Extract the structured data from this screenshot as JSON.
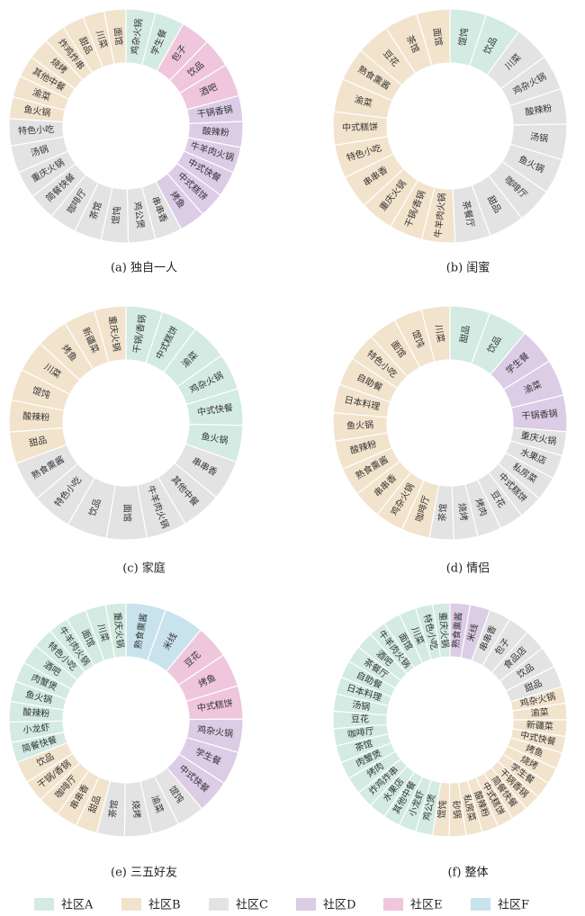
{
  "chart_data": [
    {
      "type": "donut",
      "title": "(a) 独自一人",
      "categories": [
        "鸡杂火锅",
        "学生餐",
        "包子",
        "饮品",
        "酒吧",
        "干锅香锅",
        "酸辣粉",
        "牛羊肉火锅",
        "中式快餐",
        "中式糕饼",
        "烤鱼",
        "串串香",
        "鸡公煲",
        "馄饨",
        "茶馆",
        "咖啡厅",
        "简餐快餐",
        "重庆火锅",
        "汤锅",
        "特色小吃",
        "鱼火锅",
        "渝菜",
        "其他中餐",
        "烧烤",
        "炸鸡炸串",
        "甜品",
        "川菜",
        "面馆"
      ],
      "values": [
        4,
        4,
        4,
        4,
        4.5,
        3.5,
        3.5,
        3.5,
        3.5,
        3.5,
        3.5,
        3.7,
        3.7,
        3.7,
        3.7,
        3.7,
        3.7,
        3.7,
        3.7,
        3.7,
        2.95,
        2.95,
        2.95,
        2.95,
        2.95,
        2.95,
        2.95,
        2.95
      ],
      "colors": [
        "#d3ebe2",
        "#d3ebe2",
        "#efc6dc",
        "#efc6dc",
        "#efc6dc",
        "#dccce6",
        "#dccce6",
        "#dccce6",
        "#dccce6",
        "#dccce6",
        "#dccce6",
        "#e3e3e3",
        "#e3e3e3",
        "#e3e3e3",
        "#e3e3e3",
        "#e3e3e3",
        "#e3e3e3",
        "#e3e3e3",
        "#e3e3e3",
        "#e3e3e3",
        "#f2e3cd",
        "#f2e3cd",
        "#f2e3cd",
        "#f2e3cd",
        "#f2e3cd",
        "#f2e3cd",
        "#f2e3cd",
        "#f2e3cd"
      ]
    },
    {
      "type": "donut",
      "title": "(b) 闺蜜",
      "categories": [
        "馄饨",
        "饮品",
        "川菜",
        "鸡杂火锅",
        "酸辣粉",
        "汤锅",
        "鱼火锅",
        "咖啡厅",
        "甜品",
        "茶餐厅",
        "牛羊肉火锅",
        "干锅/香锅",
        "重庆火锅",
        "串串香",
        "特色小吃",
        "中式糕饼",
        "渝菜",
        "熟食熏酱",
        "豆花",
        "茶馆",
        "面馆"
      ],
      "values": [
        5,
        5,
        4.9,
        4.9,
        4.9,
        4.9,
        4.9,
        4.9,
        4.9,
        4.9,
        4.6,
        4.6,
        4.6,
        4.6,
        4.6,
        4.6,
        4.6,
        4.6,
        4.6,
        4.6,
        4.6
      ],
      "colors": [
        "#d3ebe2",
        "#d3ebe2",
        "#e3e3e3",
        "#e3e3e3",
        "#e3e3e3",
        "#e3e3e3",
        "#e3e3e3",
        "#e3e3e3",
        "#e3e3e3",
        "#e3e3e3",
        "#f2e3cd",
        "#f2e3cd",
        "#f2e3cd",
        "#f2e3cd",
        "#f2e3cd",
        "#f2e3cd",
        "#f2e3cd",
        "#f2e3cd",
        "#f2e3cd",
        "#f2e3cd",
        "#f2e3cd"
      ]
    },
    {
      "type": "donut",
      "title": "(c) 家庭",
      "categories": [
        "干锅/香锅",
        "中式糕饼",
        "渝菜",
        "鸡杂火锅",
        "中式快餐",
        "鱼火锅",
        "串串香",
        "其他中餐",
        "牛羊肉火锅",
        "面馆",
        "饮品",
        "特色小吃",
        "熟食熏酱",
        "甜品",
        "酸辣粉",
        "馄饨",
        "川菜",
        "烤鱼",
        "新疆菜",
        "重庆火锅"
      ],
      "values": [
        5.1,
        5.1,
        5.1,
        5.1,
        5.1,
        5.1,
        5.6,
        5.6,
        5.6,
        5.6,
        5.6,
        5.6,
        5.6,
        4.4,
        4.4,
        4.4,
        4.4,
        4.4,
        4.4,
        4.4
      ],
      "colors": [
        "#d3ebe2",
        "#d3ebe2",
        "#d3ebe2",
        "#d3ebe2",
        "#d3ebe2",
        "#d3ebe2",
        "#e3e3e3",
        "#e3e3e3",
        "#e3e3e3",
        "#e3e3e3",
        "#e3e3e3",
        "#e3e3e3",
        "#e3e3e3",
        "#f2e3cd",
        "#f2e3cd",
        "#f2e3cd",
        "#f2e3cd",
        "#f2e3cd",
        "#f2e3cd",
        "#f2e3cd"
      ]
    },
    {
      "type": "donut",
      "title": "(d) 情侣",
      "categories": [
        "甜品",
        "饮品",
        "学生餐",
        "渝菜",
        "干锅香锅",
        "重庆火锅",
        "水果店",
        "私房菜",
        "中式糕饼",
        "豆花",
        "烤肉",
        "烧烤",
        "茶馆",
        "咖啡厅",
        "鸡杂火锅",
        "串串香",
        "熟食熏酱",
        "酸辣粉",
        "鱼火锅",
        "日本料理",
        "自助餐",
        "特色小吃",
        "面馆",
        "馄饨",
        "川菜"
      ],
      "values": [
        5.5,
        5.5,
        5,
        5,
        5,
        3.3,
        3.3,
        3.3,
        3.3,
        3.3,
        3.3,
        3.3,
        3.3,
        3.9,
        3.9,
        3.9,
        3.9,
        3.9,
        3.9,
        3.9,
        3.9,
        3.9,
        3.9,
        3.9,
        3.9
      ],
      "colors": [
        "#d3ebe2",
        "#d3ebe2",
        "#dccce6",
        "#dccce6",
        "#dccce6",
        "#e3e3e3",
        "#e3e3e3",
        "#e3e3e3",
        "#e3e3e3",
        "#e3e3e3",
        "#e3e3e3",
        "#e3e3e3",
        "#e3e3e3",
        "#f2e3cd",
        "#f2e3cd",
        "#f2e3cd",
        "#f2e3cd",
        "#f2e3cd",
        "#f2e3cd",
        "#f2e3cd",
        "#f2e3cd",
        "#f2e3cd",
        "#f2e3cd",
        "#f2e3cd",
        "#f2e3cd"
      ]
    },
    {
      "type": "donut",
      "title": "(e) 三五好友",
      "categories": [
        "熟食熏酱",
        "米线",
        "豆花",
        "烤鱼",
        "中式糕饼",
        "鸡杂火锅",
        "学生餐",
        "中式快餐",
        "馄饨",
        "渝菜",
        "烧烤",
        "茶馆",
        "甜品",
        "串串香",
        "咖啡厅",
        "干锅/香锅",
        "饮品",
        "简餐快餐",
        "小龙虾",
        "酸辣粉",
        "鱼火锅",
        "肉蟹煲",
        "酒吧",
        "特色小吃",
        "牛羊肉火锅",
        "面馆",
        "川菜",
        "重庆火锅"
      ],
      "values": [
        5.5,
        5.5,
        4.6,
        4.6,
        4.6,
        4.6,
        4.6,
        4.6,
        3.8,
        3.8,
        3.8,
        3.8,
        3,
        3,
        3,
        3,
        3,
        2.8,
        2.8,
        2.8,
        2.8,
        2.8,
        2.8,
        2.8,
        2.8,
        2.8,
        2.8,
        2.8
      ],
      "colors": [
        "#c9e3ec",
        "#c9e3ec",
        "#efc6dc",
        "#efc6dc",
        "#efc6dc",
        "#dccce6",
        "#dccce6",
        "#dccce6",
        "#e3e3e3",
        "#e3e3e3",
        "#e3e3e3",
        "#e3e3e3",
        "#f2e3cd",
        "#f2e3cd",
        "#f2e3cd",
        "#f2e3cd",
        "#f2e3cd",
        "#d3ebe2",
        "#d3ebe2",
        "#d3ebe2",
        "#d3ebe2",
        "#d3ebe2",
        "#d3ebe2",
        "#d3ebe2",
        "#d3ebe2",
        "#d3ebe2",
        "#d3ebe2",
        "#d3ebe2"
      ]
    },
    {
      "type": "donut",
      "title": "(f) 整体",
      "categories": [
        "熟食熏酱",
        "米线",
        "串串香",
        "包子",
        "食品店",
        "饮品",
        "甜品",
        "鸡杂火锅",
        "渝菜",
        "新疆菜",
        "中式快餐",
        "烤鱼",
        "烧烤",
        "学生餐",
        "干锅香锅",
        "简餐快餐",
        "中式糕饼",
        "酸辣粉",
        "私房菜",
        "砂锅",
        "馄饨",
        "鸡公煲",
        "小龙虾",
        "其他中餐",
        "水果店",
        "炸鸡炸串",
        "烤肉",
        "肉蟹煲",
        "茶馆",
        "咖啡厅",
        "豆花",
        "汤锅",
        "日本料理",
        "自助餐",
        "茶餐厅",
        "酒吧",
        "牛羊肉火锅",
        "面馆",
        "川菜",
        "特色小吃",
        "重庆火锅"
      ],
      "values": [
        2.8,
        2.8,
        3,
        3,
        3,
        3,
        3,
        2.3,
        2.3,
        2.3,
        2.3,
        2.3,
        2.3,
        2.3,
        2.3,
        2.3,
        2.3,
        2.3,
        2.3,
        2.3,
        2.3,
        2.4,
        2.4,
        2.4,
        2.4,
        2.4,
        2.4,
        2.4,
        2.4,
        2.4,
        2.4,
        2.4,
        2.4,
        2.4,
        2.4,
        2.4,
        2.4,
        2.4,
        2.4,
        2.4,
        2.4
      ],
      "colors": [
        "#dccce6",
        "#dccce6",
        "#e3e3e3",
        "#e3e3e3",
        "#e3e3e3",
        "#e3e3e3",
        "#e3e3e3",
        "#f2e3cd",
        "#f2e3cd",
        "#f2e3cd",
        "#f2e3cd",
        "#f2e3cd",
        "#f2e3cd",
        "#f2e3cd",
        "#f2e3cd",
        "#f2e3cd",
        "#f2e3cd",
        "#f2e3cd",
        "#f2e3cd",
        "#f2e3cd",
        "#f2e3cd",
        "#d3ebe2",
        "#d3ebe2",
        "#d3ebe2",
        "#d3ebe2",
        "#d3ebe2",
        "#d3ebe2",
        "#d3ebe2",
        "#d3ebe2",
        "#d3ebe2",
        "#d3ebe2",
        "#d3ebe2",
        "#d3ebe2",
        "#d3ebe2",
        "#d3ebe2",
        "#d3ebe2",
        "#d3ebe2",
        "#d3ebe2",
        "#d3ebe2",
        "#d3ebe2",
        "#d3ebe2"
      ]
    }
  ],
  "legend": [
    {
      "name": "社区A",
      "color": "#d3ebe2"
    },
    {
      "name": "社区B",
      "color": "#f2e3cd"
    },
    {
      "name": "社区C",
      "color": "#e3e3e3"
    },
    {
      "name": "社区D",
      "color": "#dccce6"
    },
    {
      "name": "社区E",
      "color": "#efc6dc"
    },
    {
      "name": "社区F",
      "color": "#c9e3ec"
    }
  ]
}
